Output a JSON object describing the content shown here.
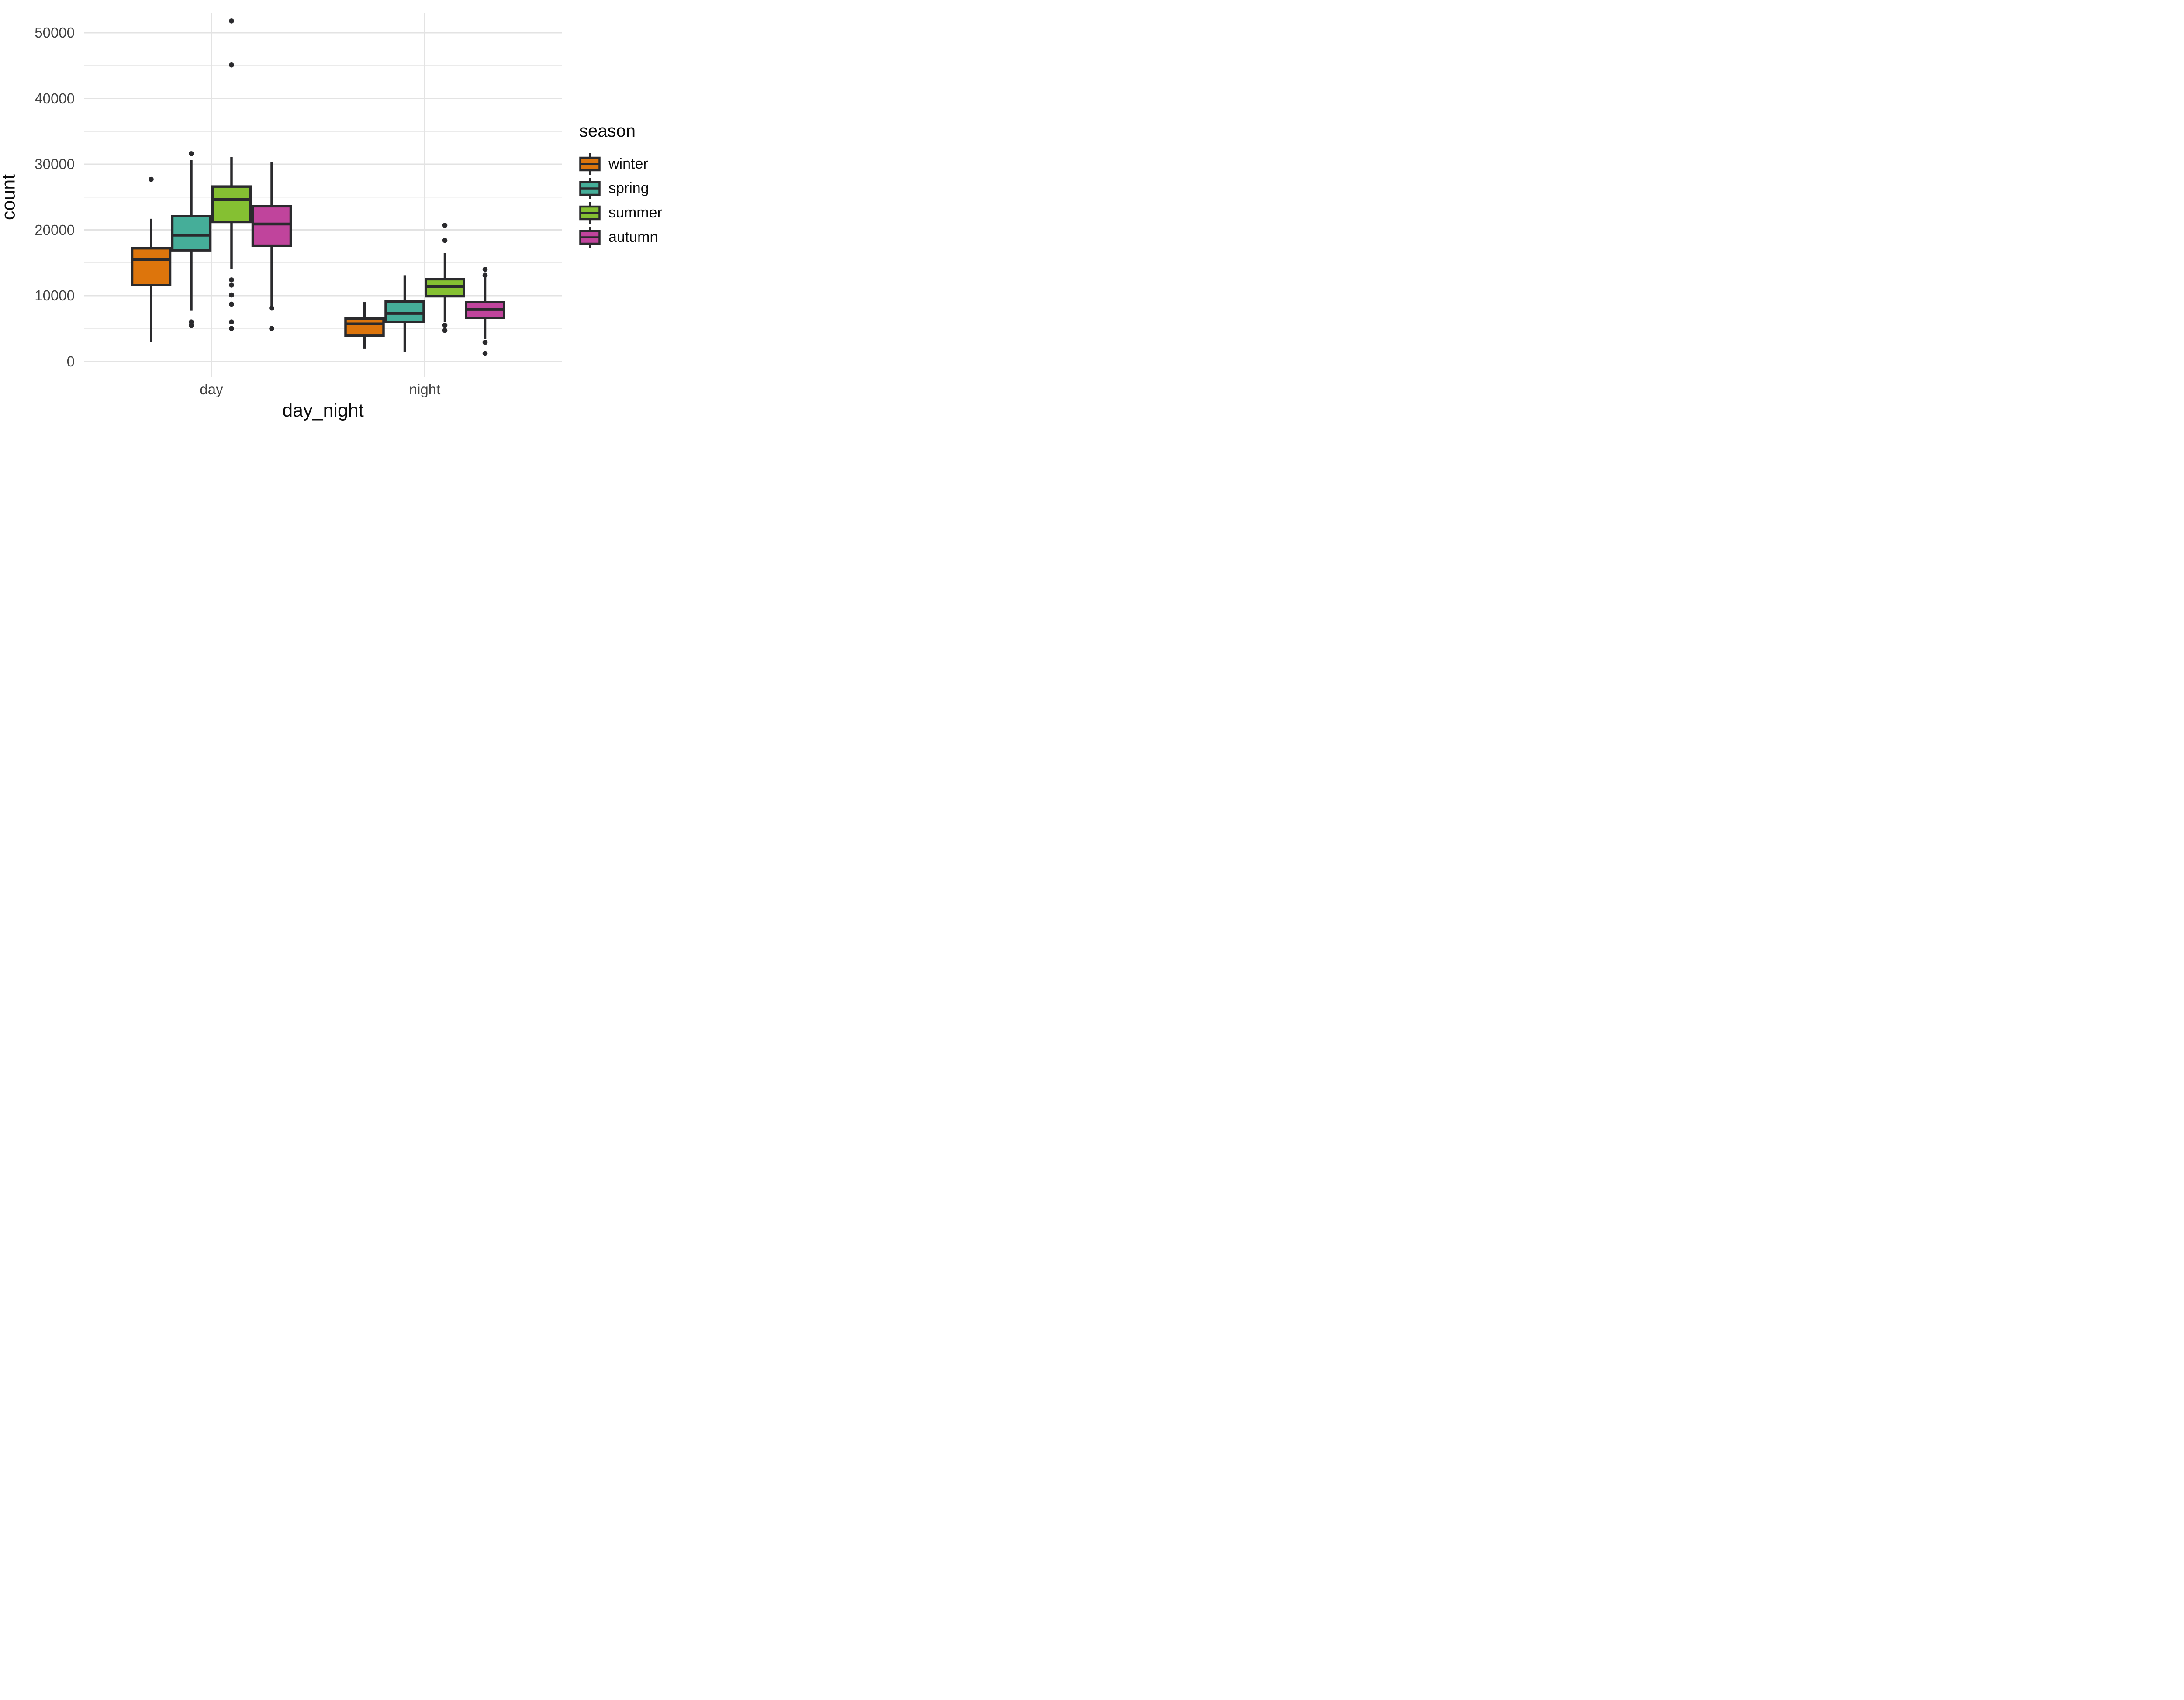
{
  "figure": {
    "background": "#FFFFFF"
  },
  "chart_data": {
    "type": "boxplot",
    "title": "",
    "xlabel": "day_night",
    "ylabel": "count",
    "categories": [
      "day",
      "night"
    ],
    "grid": "on",
    "legend_position": "right",
    "ylim": [
      -2425,
      52990
    ],
    "yticks": [
      0,
      10000,
      20000,
      30000,
      40000,
      50000
    ],
    "ytick_labels": [
      "0",
      "10000",
      "20000",
      "30000",
      "40000",
      "50000"
    ],
    "yticks_minor": [
      5000,
      15000,
      25000,
      35000,
      45000
    ],
    "series": [
      {
        "name": "winter",
        "color": "#DD750C",
        "boxes": [
          {
            "category": "day",
            "whislo": 2900,
            "q1": 11600,
            "med": 15500,
            "q3": 17200,
            "whishi": 21700,
            "outliers": [
              27700
            ]
          },
          {
            "category": "night",
            "whislo": 1900,
            "q1": 3900,
            "med": 5700,
            "q3": 6500,
            "whishi": 9000,
            "outliers": []
          }
        ]
      },
      {
        "name": "spring",
        "color": "#45AE99",
        "boxes": [
          {
            "category": "day",
            "whislo": 7700,
            "q1": 16900,
            "med": 19200,
            "q3": 22100,
            "whishi": 30600,
            "outliers": [
              31600,
              6000,
              5500
            ]
          },
          {
            "category": "night",
            "whislo": 1400,
            "q1": 6000,
            "med": 7300,
            "q3": 9100,
            "whishi": 13100,
            "outliers": []
          }
        ]
      },
      {
        "name": "summer",
        "color": "#85C032",
        "boxes": [
          {
            "category": "day",
            "whislo": 14100,
            "q1": 21200,
            "med": 24600,
            "q3": 26600,
            "whishi": 31100,
            "outliers": [
              51800,
              45100,
              12400,
              11600,
              10100,
              8700,
              6000,
              5000
            ]
          },
          {
            "category": "night",
            "whislo": 6000,
            "q1": 9900,
            "med": 11400,
            "q3": 12500,
            "whishi": 16500,
            "outliers": [
              20700,
              18400,
              5500,
              4700
            ]
          }
        ]
      },
      {
        "name": "autumn",
        "color": "#C0449C",
        "boxes": [
          {
            "category": "day",
            "whislo": 8400,
            "q1": 17600,
            "med": 20900,
            "q3": 23600,
            "whishi": 30300,
            "outliers": [
              8100,
              5000
            ]
          },
          {
            "category": "night",
            "whislo": 3400,
            "q1": 6600,
            "med": 7900,
            "q3": 9000,
            "whishi": 12700,
            "outliers": [
              14000,
              13100,
              2900,
              1200
            ]
          }
        ]
      }
    ]
  },
  "legend": {
    "title": "season",
    "entries": [
      {
        "label": "winter",
        "color": "#DD750C"
      },
      {
        "label": "spring",
        "color": "#45AE99"
      },
      {
        "label": "summer",
        "color": "#85C032"
      },
      {
        "label": "autumn",
        "color": "#C0449C"
      }
    ]
  },
  "style": {
    "box_border": "#2A2A2D",
    "grid_major": "#E3E3E3",
    "grid_minor": "#EBEBEB",
    "tick_text_color": "#434343",
    "title_text_color": "#0D0D0D",
    "outlier_color": "#2A2A2D"
  }
}
